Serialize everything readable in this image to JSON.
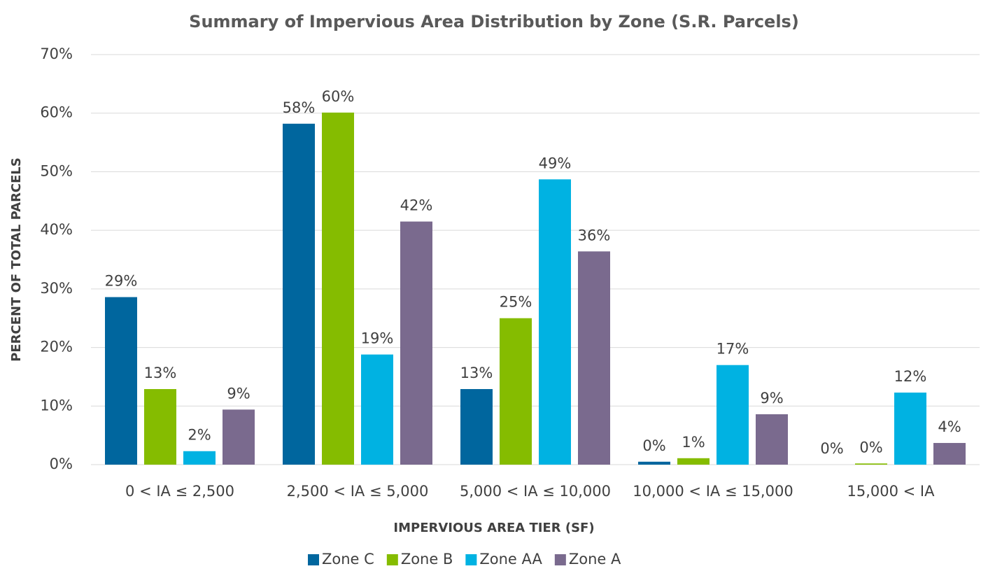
{
  "chart_data": {
    "type": "bar",
    "title": "Summary of Impervious Area Distribution by Zone (S.R. Parcels)",
    "x_label": "IMPERVIOUS AREA TIER (SF)",
    "y_label": "PERCENT OF TOTAL PARCELS",
    "categories": [
      "0 < IA ≤ 2,500",
      "2,500 < IA ≤ 5,000",
      "5,000 < IA ≤ 10,000",
      "10,000 < IA ≤ 15,000",
      "15,000 < IA"
    ],
    "series": [
      {
        "name": "Zone C",
        "color": "#00669e",
        "values": [
          28.6,
          58.2,
          12.9,
          0.5,
          0
        ],
        "value_labels": [
          "29%",
          "58%",
          "13%",
          "0%",
          "0%"
        ]
      },
      {
        "name": "Zone B",
        "color": "#85bc00",
        "values": [
          12.9,
          60.1,
          25.0,
          1.1,
          0.2
        ],
        "value_labels": [
          "13%",
          "60%",
          "25%",
          "1%",
          "0%"
        ]
      },
      {
        "name": "Zone AA",
        "color": "#00b2e2",
        "values": [
          2.3,
          18.8,
          48.7,
          17.0,
          12.3
        ],
        "value_labels": [
          "2%",
          "19%",
          "49%",
          "17%",
          "12%"
        ]
      },
      {
        "name": "Zone A",
        "color": "#7a6a8e",
        "values": [
          9.4,
          41.5,
          36.4,
          8.6,
          3.7
        ],
        "value_labels": [
          "9%",
          "42%",
          "36%",
          "9%",
          "4%"
        ]
      }
    ],
    "ylim": [
      0,
      70
    ],
    "yticks": [
      {
        "value": 0,
        "label": "0%"
      },
      {
        "value": 10,
        "label": "10%"
      },
      {
        "value": 20,
        "label": "20%"
      },
      {
        "value": 30,
        "label": "30%"
      },
      {
        "value": 40,
        "label": "40%"
      },
      {
        "value": 50,
        "label": "50%"
      },
      {
        "value": 60,
        "label": "60%"
      },
      {
        "value": 70,
        "label": "70%"
      }
    ],
    "grid": true,
    "legend": "bottom"
  }
}
